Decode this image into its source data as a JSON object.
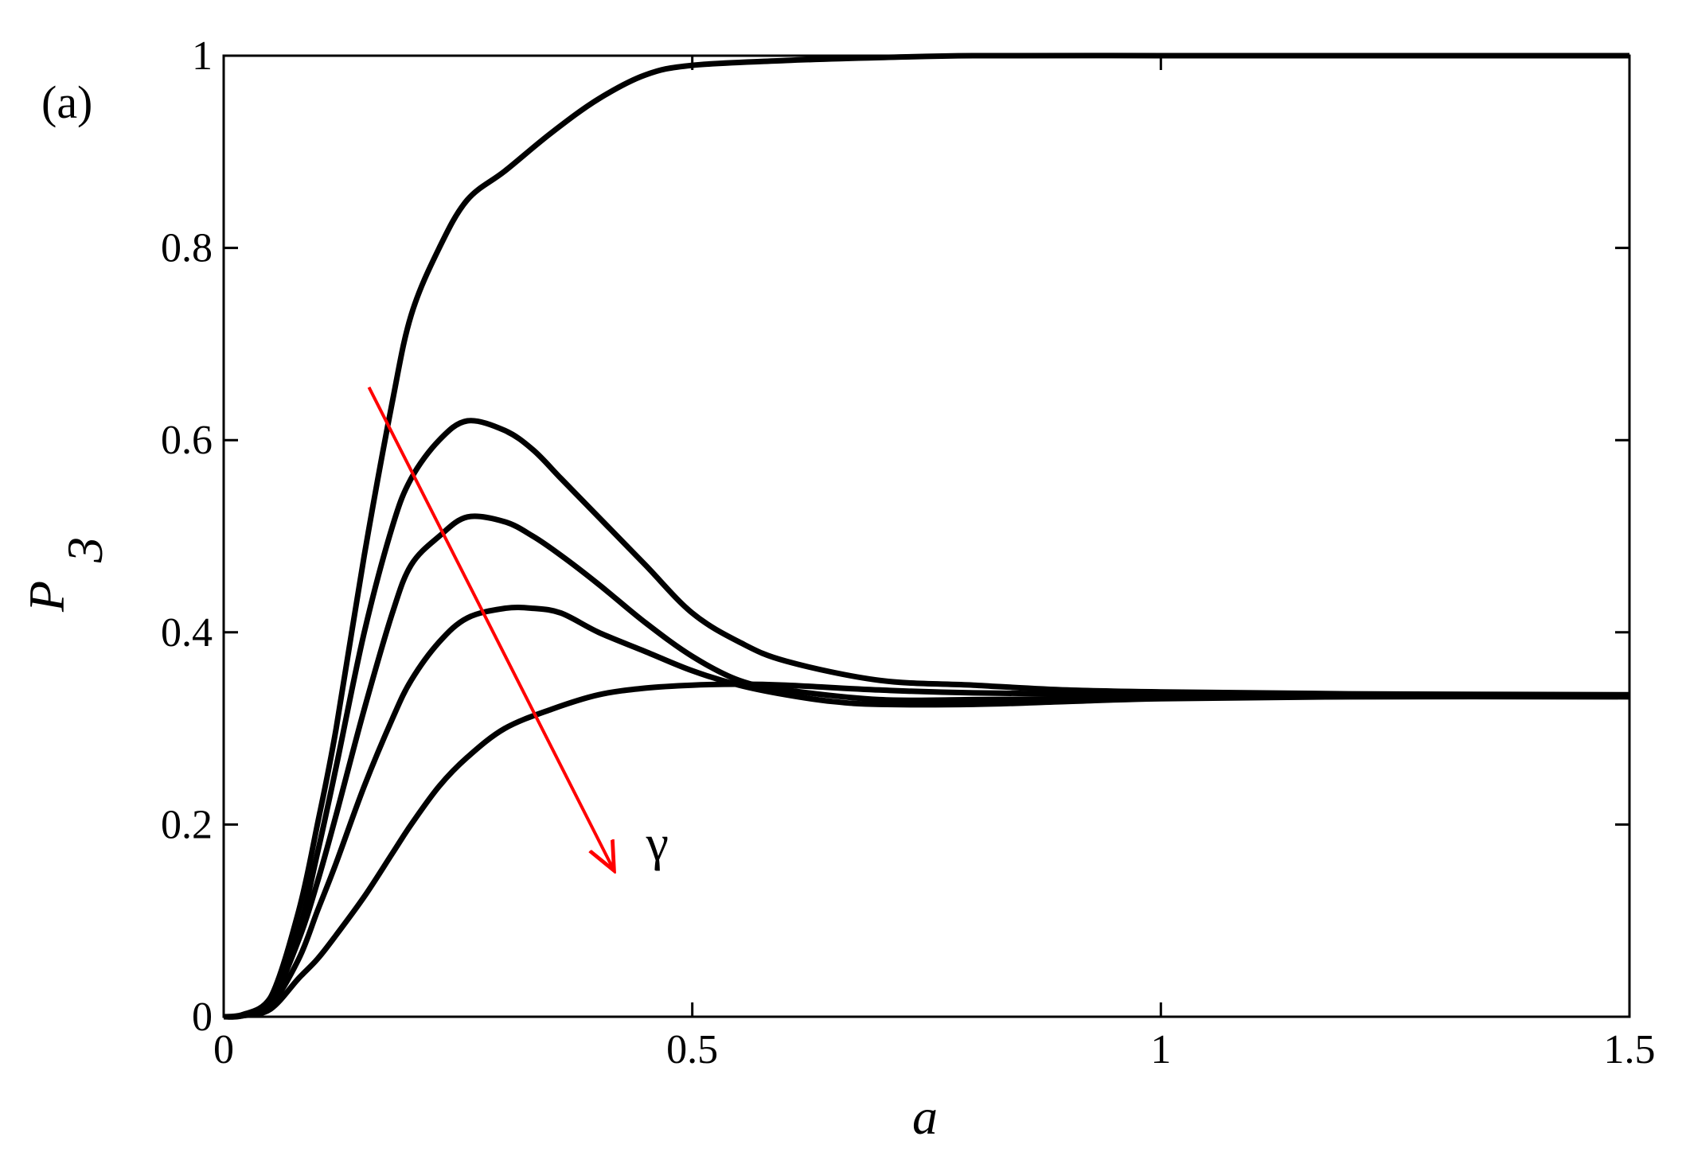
{
  "panel_label": "(a)",
  "chart_data": {
    "type": "line",
    "title": "",
    "xlabel": "a",
    "ylabel": "P",
    "ylabel_subscript": "3",
    "xlim": [
      0,
      1.5
    ],
    "ylim": [
      0,
      1
    ],
    "xticks": [
      0,
      0.5,
      1,
      1.5
    ],
    "xtick_labels": [
      "0",
      "0.5",
      "1",
      "1.5"
    ],
    "yticks": [
      0,
      0.2,
      0.4,
      0.6,
      0.8,
      1
    ],
    "ytick_labels": [
      "0",
      "0.2",
      "0.4",
      "0.6",
      "0.8",
      "1"
    ],
    "grid": false,
    "series": [
      {
        "x": [
          0,
          0.02,
          0.05,
          0.08,
          0.1,
          0.12,
          0.15,
          0.18,
          0.2,
          0.23,
          0.26,
          0.3,
          0.35,
          0.4,
          0.45,
          0.5,
          0.6,
          0.7,
          0.8,
          1.0,
          1.2,
          1.5
        ],
        "values": [
          0,
          0.002,
          0.02,
          0.11,
          0.2,
          0.3,
          0.48,
          0.64,
          0.73,
          0.8,
          0.85,
          0.88,
          0.92,
          0.955,
          0.98,
          0.99,
          0.995,
          0.998,
          1.0,
          1.0,
          1.0,
          1.0
        ]
      },
      {
        "x": [
          0,
          0.02,
          0.05,
          0.08,
          0.1,
          0.12,
          0.15,
          0.18,
          0.2,
          0.23,
          0.26,
          0.3,
          0.33,
          0.36,
          0.4,
          0.45,
          0.5,
          0.55,
          0.6,
          0.7,
          0.8,
          0.9,
          1.0,
          1.2,
          1.5
        ],
        "values": [
          0,
          0.002,
          0.02,
          0.09,
          0.17,
          0.26,
          0.4,
          0.51,
          0.56,
          0.6,
          0.62,
          0.61,
          0.59,
          0.56,
          0.52,
          0.47,
          0.42,
          0.39,
          0.37,
          0.35,
          0.345,
          0.34,
          0.338,
          0.336,
          0.335
        ]
      },
      {
        "x": [
          0,
          0.02,
          0.05,
          0.08,
          0.1,
          0.12,
          0.15,
          0.18,
          0.2,
          0.23,
          0.26,
          0.3,
          0.33,
          0.36,
          0.4,
          0.45,
          0.5,
          0.55,
          0.6,
          0.7,
          0.8,
          0.9,
          1.0,
          1.2,
          1.5
        ],
        "values": [
          0,
          0.002,
          0.015,
          0.08,
          0.14,
          0.21,
          0.32,
          0.42,
          0.47,
          0.5,
          0.52,
          0.515,
          0.5,
          0.48,
          0.45,
          0.41,
          0.375,
          0.35,
          0.34,
          0.33,
          0.33,
          0.331,
          0.332,
          0.333,
          0.333
        ]
      },
      {
        "x": [
          0,
          0.02,
          0.05,
          0.08,
          0.1,
          0.12,
          0.15,
          0.18,
          0.2,
          0.23,
          0.26,
          0.3,
          0.33,
          0.36,
          0.4,
          0.45,
          0.5,
          0.55,
          0.6,
          0.65,
          0.7,
          0.8,
          0.9,
          1.0,
          1.2,
          1.5
        ],
        "values": [
          0,
          0.001,
          0.012,
          0.06,
          0.11,
          0.16,
          0.24,
          0.31,
          0.35,
          0.39,
          0.415,
          0.425,
          0.425,
          0.42,
          0.4,
          0.38,
          0.36,
          0.345,
          0.335,
          0.328,
          0.325,
          0.325,
          0.328,
          0.331,
          0.333,
          0.333
        ]
      },
      {
        "x": [
          0,
          0.02,
          0.05,
          0.08,
          0.1,
          0.12,
          0.15,
          0.18,
          0.2,
          0.23,
          0.26,
          0.3,
          0.35,
          0.4,
          0.45,
          0.5,
          0.55,
          0.6,
          0.7,
          0.8,
          1.0,
          1.2,
          1.5
        ],
        "values": [
          0,
          0.001,
          0.008,
          0.04,
          0.06,
          0.085,
          0.125,
          0.17,
          0.2,
          0.24,
          0.27,
          0.3,
          0.32,
          0.335,
          0.342,
          0.345,
          0.346,
          0.345,
          0.34,
          0.337,
          0.335,
          0.334,
          0.334
        ]
      }
    ],
    "annotations": [
      {
        "type": "arrow",
        "label": "γ",
        "color": "#ff0000",
        "from": [
          0.155,
          0.655
        ],
        "to": [
          0.415,
          0.155
        ]
      }
    ],
    "colors": {
      "lines": "#000000",
      "arrow": "#ff0000"
    }
  }
}
